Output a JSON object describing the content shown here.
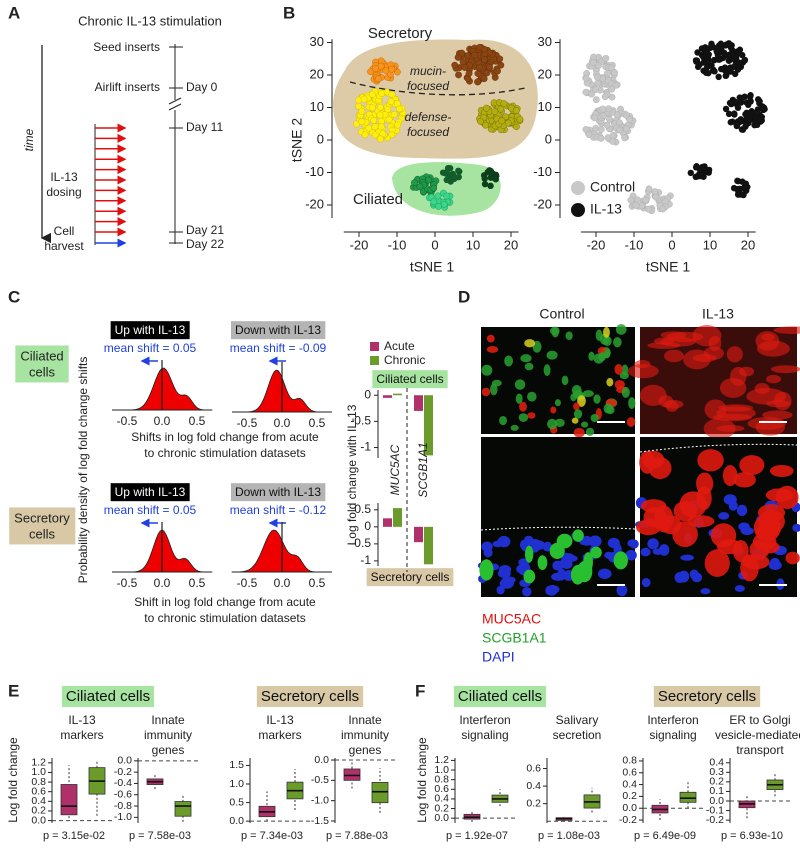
{
  "A": {
    "label": "A",
    "title": "Chronic IL-13 stimulation",
    "steps": [
      "Seed inserts",
      "Airlift inserts"
    ],
    "dosing": [
      "IL-13",
      "dosing"
    ],
    "harvest": [
      "Cell",
      "harvest"
    ],
    "days": [
      "Day 0",
      "Day 11",
      "Day 21",
      "Day 22"
    ],
    "time": "time"
  },
  "B": {
    "label": "B",
    "secretory": "Secretory",
    "ciliated": "Ciliated",
    "mucin": [
      "mucin-",
      "focused"
    ],
    "defense": [
      "defense-",
      "focused"
    ],
    "xlabel": "tSNE 1",
    "ylabel": "tSNE 2",
    "xticks": [
      -20,
      -10,
      0,
      10,
      20
    ],
    "yticks": [
      30,
      20,
      10,
      0,
      -10,
      -20
    ],
    "legend": [
      "Control",
      "IL-13"
    ]
  },
  "C": {
    "label": "C",
    "headers": [
      "Up with IL-13",
      "Down with IL-13",
      "Up with IL-13",
      "Down with IL-13"
    ],
    "shifts": [
      "mean shift = 0.05",
      "mean shift = -0.09",
      "mean shift = 0.05",
      "mean shift = -0.12"
    ],
    "xticks": [
      "-0.5",
      "0.0",
      "0.5"
    ],
    "xlabels": [
      [
        "Shifts in log fold change from acute",
        "to chronic stimulation datasets"
      ],
      [
        "Shift in log fold change from acute",
        "to chronic stimulation datasets"
      ]
    ],
    "ylabel": "Probability density of log fold change shifts",
    "rows": [
      [
        "Ciliated",
        "cells"
      ],
      [
        "Secretory",
        "cells"
      ]
    ],
    "bars": {
      "legend": [
        {
          "name": "Acute",
          "color": "#b0306a"
        },
        {
          "name": "Chronic",
          "color": "#6b9b2a"
        }
      ],
      "genes": [
        "MUC5AC",
        "SCGB1A1"
      ],
      "ylabel": "Log fold change with IL-13",
      "panels": [
        {
          "title": "Ciliated cells",
          "ylim": [
            -1.2,
            0.1
          ],
          "yticks": [
            0,
            -0.5,
            -1
          ],
          "acute": [
            -0.05,
            -0.3
          ],
          "chronic": [
            0.03,
            -1.15
          ]
        },
        {
          "title": "Secretory cells",
          "ylim": [
            -1.15,
            0.7
          ],
          "yticks": [
            0.5,
            0,
            -0.5,
            -1
          ],
          "acute": [
            0.25,
            -0.45
          ],
          "chronic": [
            0.55,
            -1.1
          ]
        }
      ]
    }
  },
  "D": {
    "label": "D",
    "cols": [
      "Control",
      "IL-13"
    ],
    "legend": [
      "MUC5AC",
      "SCGB1A1",
      "DAPI"
    ]
  },
  "E": {
    "label": "E",
    "groups": [
      "Ciliated cells",
      "Secretory cells"
    ],
    "ylabel": "Log fold change",
    "colors": [
      "#b0306a",
      "#6b9b2a"
    ],
    "plots": [
      {
        "title": [
          "IL-13",
          "markers"
        ],
        "ylim": [
          -0.05,
          1.3
        ],
        "yticks": [
          1.2,
          {
            "value": 1,
            "label": "1.0"
          },
          0.8,
          0.6,
          0.4,
          0.2,
          {
            "value": 0,
            "label": "0.0"
          }
        ],
        "boxes": [
          {
            "lo": 0.05,
            "q1": 0.12,
            "med": 0.3,
            "q3": 0.75,
            "hi": 1.15
          },
          {
            "lo": 0.1,
            "q1": 0.55,
            "med": 0.82,
            "q3": 1.1,
            "hi": 1.25
          }
        ],
        "p": "p = 3.15e-02"
      },
      {
        "title": [
          "Innate",
          "immunity",
          "genes"
        ],
        "ylim": [
          -1.1,
          0.05
        ],
        "yticks": [
          {
            "value": 0,
            "label": "0.0"
          },
          -0.2,
          -0.4,
          -0.6,
          -0.8,
          {
            "value": -1,
            "label": "-1.0"
          }
        ],
        "boxes": [
          {
            "lo": -0.5,
            "q1": -0.42,
            "med": -0.37,
            "q3": -0.32,
            "hi": -0.25
          },
          {
            "lo": -1.08,
            "q1": -0.98,
            "med": -0.8,
            "q3": -0.72,
            "hi": -0.62
          }
        ],
        "p": "p = 7.58e-03"
      },
      {
        "title": [
          "IL-13",
          "markers"
        ],
        "ylim": [
          -0.05,
          1.7
        ],
        "yticks": [
          1.5,
          {
            "value": 1,
            "label": "1.0"
          },
          0.5,
          {
            "value": 0,
            "label": "0.0"
          }
        ],
        "boxes": [
          {
            "lo": 0,
            "q1": 0.12,
            "med": 0.25,
            "q3": 0.4,
            "hi": 0.8
          },
          {
            "lo": 0.3,
            "q1": 0.6,
            "med": 0.82,
            "q3": 1.05,
            "hi": 1.4
          }
        ],
        "p": "p = 7.34e-03"
      },
      {
        "title": [
          "Innate",
          "immunity",
          "genes"
        ],
        "ylim": [
          -1.55,
          0.05
        ],
        "yticks": [
          {
            "value": 0,
            "label": "0.0"
          },
          -0.5,
          {
            "value": -1,
            "label": "-1.0"
          },
          -1.5
        ],
        "boxes": [
          {
            "lo": -0.7,
            "q1": -0.5,
            "med": -0.38,
            "q3": -0.22,
            "hi": -0.05
          },
          {
            "lo": -1.3,
            "q1": -1.05,
            "med": -0.78,
            "q3": -0.55,
            "hi": -0.2
          }
        ],
        "p": "p = 7.88e-03"
      }
    ]
  },
  "F": {
    "label": "F",
    "groups": [
      "Ciliated cells",
      "Secretory cells"
    ],
    "ylabel": "Log fold change",
    "colors": [
      "#b0306a",
      "#6b9b2a"
    ],
    "plots": [
      {
        "title": [
          "Interferon",
          "signaling"
        ],
        "ylim": [
          -0.1,
          1.25
        ],
        "yticks": [
          1.2,
          {
            "value": 1,
            "label": "1.0"
          },
          0.8,
          0.6,
          0.4,
          0.2,
          {
            "value": 0,
            "label": "0.0"
          }
        ],
        "boxes": [
          {
            "lo": -0.08,
            "q1": -0.02,
            "med": 0.02,
            "q3": 0.08,
            "hi": 0.15
          },
          {
            "lo": 0.25,
            "q1": 0.33,
            "med": 0.4,
            "q3": 0.48,
            "hi": 0.6
          }
        ],
        "p": "p = 1.92e-07"
      },
      {
        "title": [
          "Salivary",
          "secretion"
        ],
        "ylim": [
          -0.02,
          0.72
        ],
        "yticks": [
          0.6,
          0.4,
          0.2
        ],
        "boxes": [
          {
            "lo": 0,
            "q1": 0.01,
            "med": 0.03,
            "q3": 0.04,
            "hi": 0.05
          },
          {
            "lo": 0.1,
            "q1": 0.15,
            "med": 0.22,
            "q3": 0.3,
            "hi": 0.38
          }
        ],
        "p": "p = 1.08e-03"
      },
      {
        "title": [
          "Interferon",
          "signaling"
        ],
        "ylim": [
          -0.25,
          0.85
        ],
        "yticks": [
          0.8,
          0.6,
          0.4,
          0.2,
          {
            "value": 0,
            "label": "0.0"
          },
          -0.2
        ],
        "boxes": [
          {
            "lo": -0.2,
            "q1": -0.08,
            "med": -0.02,
            "q3": 0.05,
            "hi": 0.15
          },
          {
            "lo": 0,
            "q1": 0.1,
            "med": 0.17,
            "q3": 0.27,
            "hi": 0.45
          }
        ],
        "p": "p = 6.49e-09"
      },
      {
        "title": [
          "ER to Golgi",
          "vesicle-mediated",
          "transport"
        ],
        "ylim": [
          -0.23,
          0.45
        ],
        "yticks": [
          0.4,
          0.3,
          0.2,
          0.1,
          {
            "value": 0,
            "label": "0.0"
          },
          -0.1,
          -0.2
        ],
        "boxes": [
          {
            "lo": -0.18,
            "q1": -0.07,
            "med": -0.03,
            "q3": 0,
            "hi": 0.05
          },
          {
            "lo": 0.05,
            "q1": 0.12,
            "med": 0.17,
            "q3": 0.22,
            "hi": 0.3
          }
        ],
        "p": "p = 6.93e-10"
      }
    ]
  }
}
